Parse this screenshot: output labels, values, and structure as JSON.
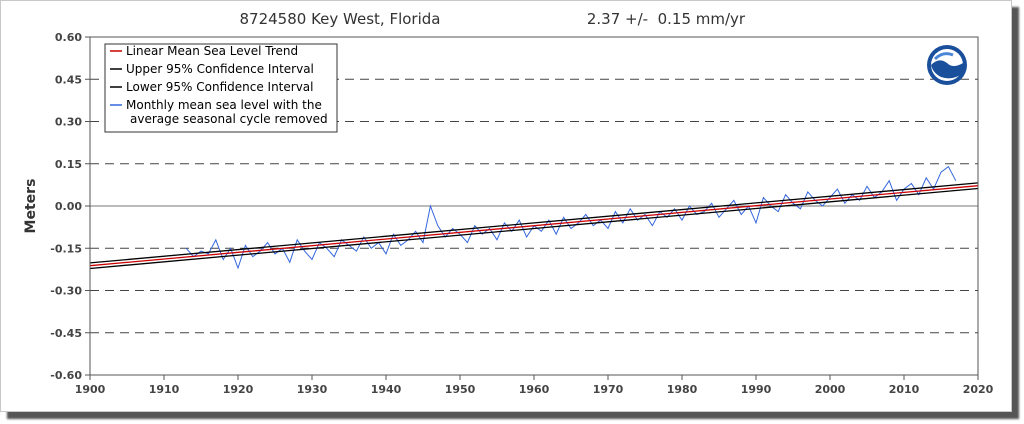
{
  "chart_data": {
    "type": "line",
    "title": "8724580 Key West, Florida",
    "trend_text": "2.37 +/-  0.15 mm/yr",
    "ylabel": "Meters",
    "xlabel": "",
    "xlim": [
      1900,
      2020
    ],
    "ylim": [
      -0.6,
      0.6
    ],
    "x_ticks": [
      "1900",
      "1910",
      "1920",
      "1930",
      "1940",
      "1950",
      "1960",
      "1970",
      "1980",
      "1990",
      "2000",
      "2010",
      "2020"
    ],
    "y_ticks": [
      "0.60",
      "0.45",
      "0.30",
      "0.15",
      "0.00",
      "-0.15",
      "-0.30",
      "-0.45",
      "-0.60"
    ],
    "grid": "horizontal dashed",
    "legend_position": "top-left",
    "legend": [
      {
        "label": "Linear Mean Sea Level Trend",
        "color": "#cc0000"
      },
      {
        "label": "Upper 95% Confidence Interval",
        "color": "#000000"
      },
      {
        "label": "Lower 95% Confidence Interval",
        "color": "#000000"
      },
      {
        "label": "Monthly mean sea level with the",
        "label2": "average seasonal cycle removed",
        "color": "#3366dd"
      }
    ],
    "series": [
      {
        "kind": "trend",
        "x": [
          1900,
          2020
        ],
        "y": [
          -0.212,
          0.072
        ],
        "color": "#cc0000"
      },
      {
        "kind": "upper",
        "x": [
          1900,
          2020
        ],
        "y": [
          -0.202,
          0.082
        ],
        "color": "#000000"
      },
      {
        "kind": "lower",
        "x": [
          1900,
          2020
        ],
        "y": [
          -0.222,
          0.062
        ],
        "color": "#000000"
      },
      {
        "kind": "monthly",
        "color": "#3366dd",
        "x": [
          1913.0,
          1914.0,
          1915.0,
          1916.0,
          1917.0,
          1918.0,
          1919.0,
          1920.0,
          1921.0,
          1922.0,
          1923.0,
          1924.0,
          1925.0,
          1926.0,
          1927.0,
          1928.0,
          1929.0,
          1930.0,
          1931.0,
          1932.0,
          1933.0,
          1934.0,
          1935.0,
          1936.0,
          1937.0,
          1938.0,
          1939.0,
          1940.0,
          1941.0,
          1942.0,
          1943.0,
          1944.0,
          1945.0,
          1946.0,
          1947.0,
          1948.0,
          1949.0,
          1950.0,
          1951.0,
          1952.0,
          1953.0,
          1954.0,
          1955.0,
          1956.0,
          1957.0,
          1958.0,
          1959.0,
          1960.0,
          1961.0,
          1962.0,
          1963.0,
          1964.0,
          1965.0,
          1966.0,
          1967.0,
          1968.0,
          1969.0,
          1970.0,
          1971.0,
          1972.0,
          1973.0,
          1974.0,
          1975.0,
          1976.0,
          1977.0,
          1978.0,
          1979.0,
          1980.0,
          1981.0,
          1982.0,
          1983.0,
          1984.0,
          1985.0,
          1986.0,
          1987.0,
          1988.0,
          1989.0,
          1990.0,
          1991.0,
          1992.0,
          1993.0,
          1994.0,
          1995.0,
          1996.0,
          1997.0,
          1998.0,
          1999.0,
          2000.0,
          2001.0,
          2002.0,
          2003.0,
          2004.0,
          2005.0,
          2006.0,
          2007.0,
          2008.0,
          2009.0,
          2010.0,
          2011.0,
          2012.0,
          2013.0,
          2014.0,
          2015.0,
          2016.0,
          2017.0
        ],
        "y": [
          -0.15,
          -0.18,
          -0.16,
          -0.17,
          -0.12,
          -0.19,
          -0.15,
          -0.22,
          -0.14,
          -0.18,
          -0.16,
          -0.13,
          -0.17,
          -0.15,
          -0.2,
          -0.12,
          -0.16,
          -0.19,
          -0.13,
          -0.15,
          -0.18,
          -0.12,
          -0.14,
          -0.16,
          -0.11,
          -0.15,
          -0.13,
          -0.17,
          -0.1,
          -0.14,
          -0.12,
          -0.09,
          -0.13,
          0.0,
          -0.07,
          -0.11,
          -0.08,
          -0.1,
          -0.13,
          -0.07,
          -0.1,
          -0.08,
          -0.12,
          -0.06,
          -0.09,
          -0.05,
          -0.11,
          -0.07,
          -0.09,
          -0.05,
          -0.1,
          -0.04,
          -0.08,
          -0.06,
          -0.03,
          -0.07,
          -0.05,
          -0.08,
          -0.02,
          -0.06,
          -0.01,
          -0.05,
          -0.03,
          -0.07,
          -0.02,
          -0.04,
          -0.01,
          -0.05,
          0.0,
          -0.03,
          -0.02,
          0.01,
          -0.04,
          -0.01,
          0.02,
          -0.03,
          0.0,
          -0.06,
          0.03,
          0.0,
          -0.02,
          0.04,
          0.01,
          -0.01,
          0.05,
          0.02,
          0.0,
          0.03,
          0.06,
          0.01,
          0.04,
          0.02,
          0.07,
          0.03,
          0.05,
          0.09,
          0.02,
          0.06,
          0.08,
          0.04,
          0.1,
          0.06,
          0.12,
          0.14,
          0.09
        ]
      }
    ]
  }
}
